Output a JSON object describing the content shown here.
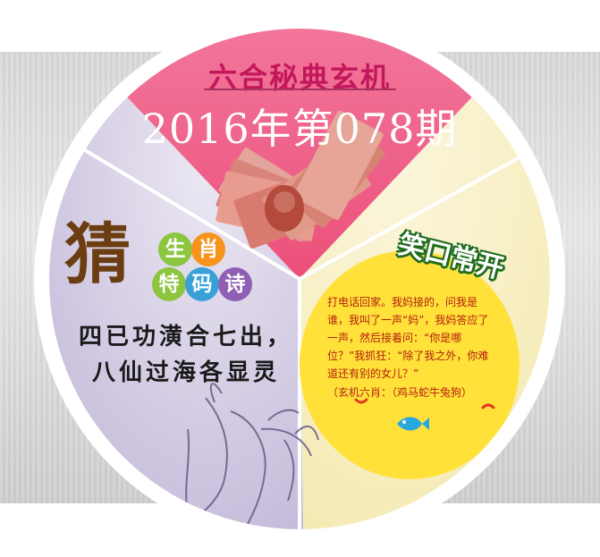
{
  "header": {
    "subtitle": "六合秘典玄机",
    "issue": "2016年第078期"
  },
  "riddle": {
    "big_char": "猜",
    "circle_chars": [
      "生",
      "肖",
      "特",
      "码",
      "诗"
    ],
    "poem": [
      "四已功潢合七出，",
      "八仙过海各显灵"
    ]
  },
  "joke": {
    "title": "笑口常开",
    "body": "打电话回家。我妈接的，问我是谁，我叫了一声“妈”，我妈答应了一声，然后接着问：“你是哪位？”我抓狂：“除了我之外，你难道还有别的女儿？”",
    "note": "（玄机六肖：（鸡马蛇牛兔狗）"
  },
  "colors": {
    "pink_sector": "#ef5a83",
    "purple_sector": "#bdb3d6",
    "yellow_sector": "#f6ecb3",
    "joke_bubble": "#ffe13a",
    "circle_green": "#8cc63f",
    "circle_orange": "#f7941d",
    "circle_blue": "#3aa1d8",
    "circle_purple": "#8e5fb3"
  },
  "icons": [
    "banknotes-image",
    "ink-figure-illustration",
    "fish-icon"
  ]
}
